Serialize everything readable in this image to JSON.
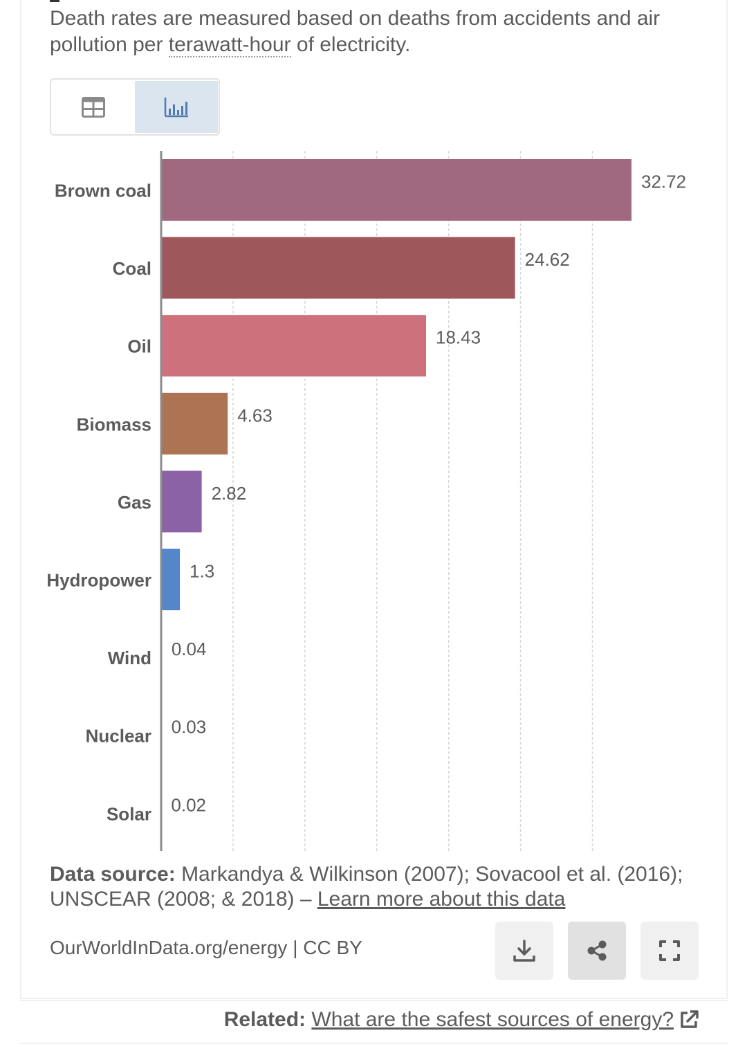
{
  "subtitle": {
    "before": "Death rates are measured based on deaths from accidents and air pollution per ",
    "term": "terawatt-hour",
    "after": " of electricity."
  },
  "view_toggle": {
    "table_icon": "table-icon",
    "chart_icon": "bar-chart-icon",
    "active": "chart"
  },
  "chart_data": {
    "type": "bar",
    "orientation": "horizontal",
    "categories": [
      "Brown coal",
      "Coal",
      "Oil",
      "Biomass",
      "Gas",
      "Hydropower",
      "Wind",
      "Nuclear",
      "Solar"
    ],
    "values": [
      32.72,
      24.62,
      18.43,
      4.63,
      2.82,
      1.3,
      0.04,
      0.03,
      0.02
    ],
    "value_labels": [
      "32.72",
      "24.62",
      "18.43",
      "4.63",
      "2.82",
      "1.3",
      "0.04",
      "0.03",
      "0.02"
    ],
    "colors": [
      "#a0697f",
      "#9e585c",
      "#cd717d",
      "#ad7453",
      "#8c62a7",
      "#5387ca",
      "#4f8fc0",
      "#d27c48",
      "#e3b54c"
    ],
    "xlim": [
      0,
      32.72
    ],
    "grid": true,
    "gridline_values": [
      5,
      10,
      15,
      20,
      25,
      30
    ]
  },
  "source": {
    "label": "Data source:",
    "text": " Markandya & Wilkinson (2007); Sovacool et al. (2016); UNSCEAR (2008; & 2018) – ",
    "link": "Learn more about this data"
  },
  "footer": {
    "url": "OurWorldInData.org/energy | CC BY"
  },
  "actions": {
    "download_icon": "download-icon",
    "share_icon": "share-icon",
    "fullscreen_icon": "fullscreen-icon"
  },
  "related": {
    "label": "Related:",
    "link": "What are the safest sources of energy?",
    "icon": "external-link-icon"
  }
}
